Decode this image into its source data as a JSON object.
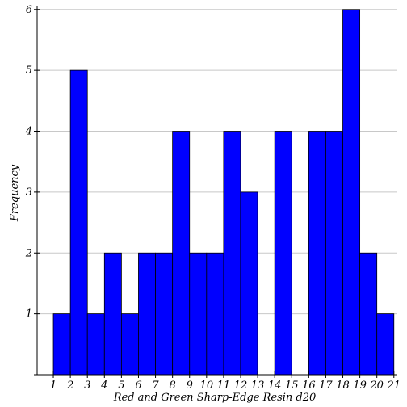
{
  "chart_data": {
    "type": "bar",
    "title": "",
    "xlabel": "Red and Green Sharp-Edge Resin d20",
    "ylabel": "Frequency",
    "x_ticks": [
      1,
      2,
      3,
      4,
      5,
      6,
      7,
      8,
      9,
      10,
      11,
      12,
      13,
      14,
      15,
      16,
      17,
      18,
      19,
      20,
      21
    ],
    "y_ticks": [
      1,
      2,
      3,
      4,
      5,
      6
    ],
    "xlim": [
      0.05,
      21.2
    ],
    "ylim": [
      0,
      6.05
    ],
    "categories": [
      "1",
      "2",
      "3",
      "4",
      "5",
      "6",
      "7",
      "8",
      "9",
      "10",
      "11",
      "12",
      "13",
      "14",
      "15",
      "16",
      "17",
      "18",
      "19",
      "20"
    ],
    "values": [
      1,
      5,
      1,
      2,
      1,
      2,
      2,
      4,
      2,
      2,
      4,
      3,
      0,
      4,
      0,
      4,
      4,
      6,
      2,
      1
    ],
    "bar_color": "#0000ff",
    "grid": true,
    "grid_color": "#c8c8c8"
  }
}
